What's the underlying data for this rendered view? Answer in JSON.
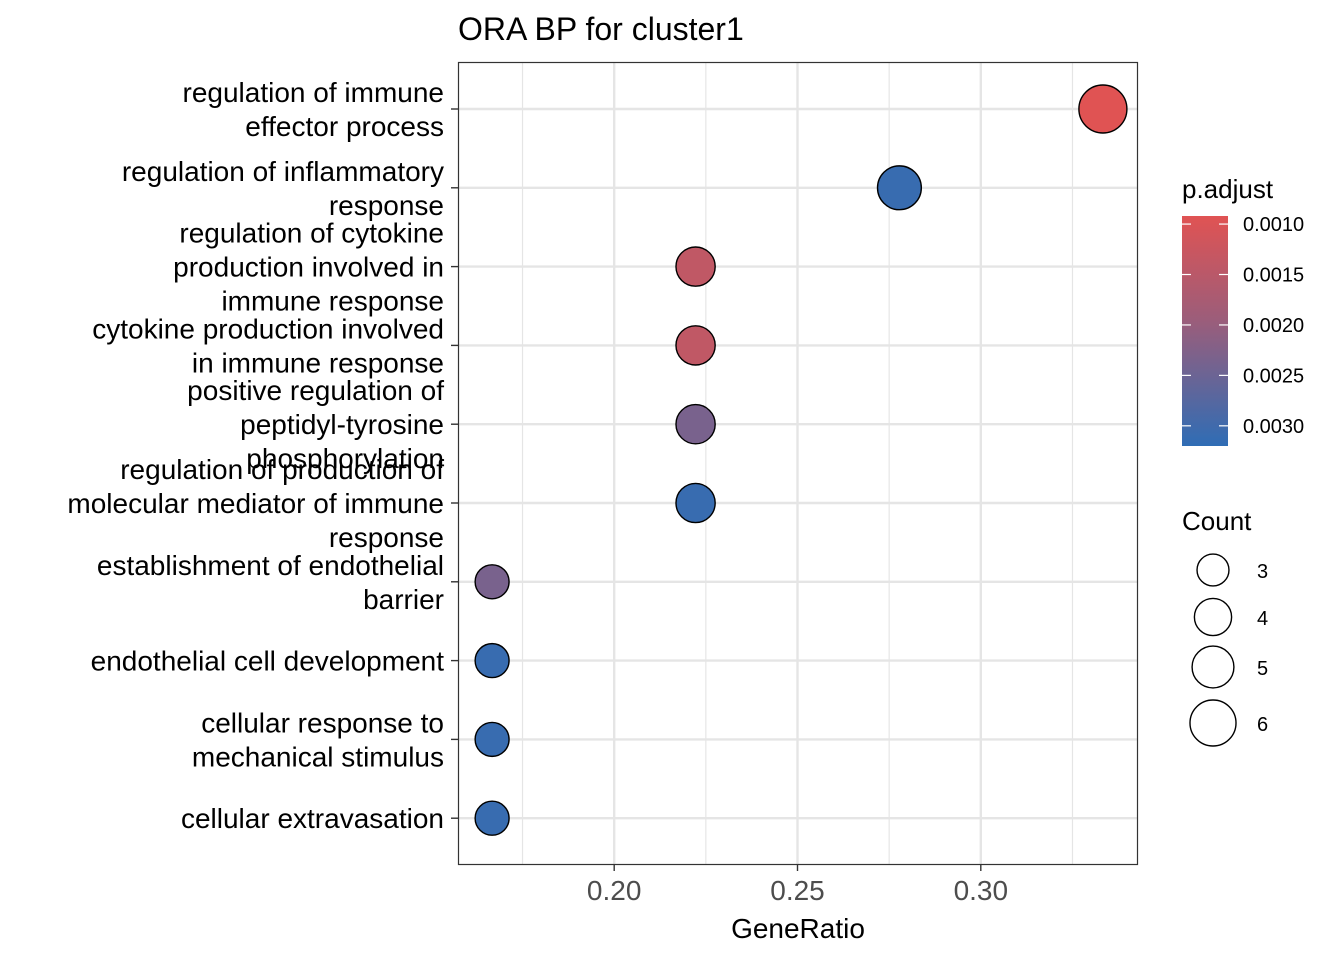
{
  "chart_data": {
    "type": "scatter",
    "title": "ORA BP for cluster1",
    "xlabel": "GeneRatio",
    "ylabel": "",
    "xlim": [
      0.1574,
      0.3426
    ],
    "x_ticks": [
      0.2,
      0.25,
      0.3
    ],
    "x_tick_labels": [
      "0.20",
      "0.25",
      "0.30"
    ],
    "grid": true,
    "categories": [
      [
        "regulation of immune",
        "effector process"
      ],
      [
        "regulation of inflammatory",
        "response"
      ],
      [
        "regulation of cytokine",
        "production involved in",
        "immune response"
      ],
      [
        "cytokine production involved",
        "in immune response"
      ],
      [
        "positive regulation of",
        "peptidyl-tyrosine",
        "phosphorylation"
      ],
      [
        "regulation of production of",
        "molecular mediator of immune",
        "response"
      ],
      [
        "establishment of endothelial",
        "barrier"
      ],
      [
        "endothelial cell development"
      ],
      [
        "cellular response to",
        "mechanical stimulus"
      ],
      [
        "cellular extravasation"
      ]
    ],
    "points": [
      {
        "x": 0.3333,
        "count": 6,
        "p_adjust": 0.00092
      },
      {
        "x": 0.2778,
        "count": 5,
        "p_adjust": 0.0031
      },
      {
        "x": 0.2222,
        "count": 4,
        "p_adjust": 0.0014
      },
      {
        "x": 0.2222,
        "count": 4,
        "p_adjust": 0.0014
      },
      {
        "x": 0.2222,
        "count": 4,
        "p_adjust": 0.00235
      },
      {
        "x": 0.2222,
        "count": 4,
        "p_adjust": 0.0031
      },
      {
        "x": 0.1667,
        "count": 3,
        "p_adjust": 0.00235
      },
      {
        "x": 0.1667,
        "count": 3,
        "p_adjust": 0.0031
      },
      {
        "x": 0.1667,
        "count": 3,
        "p_adjust": 0.0031
      },
      {
        "x": 0.1667,
        "count": 3,
        "p_adjust": 0.0031
      }
    ],
    "color_legend": {
      "title": "p.adjust",
      "range": [
        0.00092,
        0.0032
      ],
      "low_color": "#e05353",
      "high_color": "#2f6db5",
      "breaks": [
        0.001,
        0.0015,
        0.002,
        0.0025,
        0.003
      ],
      "break_labels": [
        "0.0010",
        "0.0015",
        "0.0020",
        "0.0025",
        "0.0030"
      ]
    },
    "size_legend": {
      "title": "Count",
      "values": [
        3,
        4,
        5,
        6
      ],
      "labels": [
        "3",
        "4",
        "5",
        "6"
      ]
    },
    "colors": {
      "background": "#ffffff",
      "grid": "#e5e5e5",
      "border": "#333333",
      "text": "#000000"
    }
  }
}
